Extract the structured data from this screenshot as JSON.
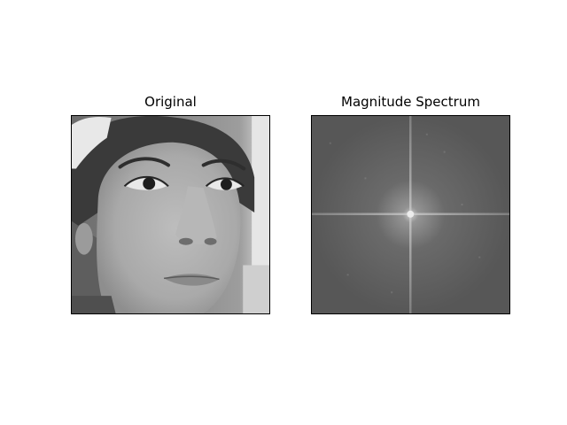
{
  "figure": {
    "panels": [
      {
        "title": "Original",
        "content": "grayscale-face-photo"
      },
      {
        "title": "Magnitude Spectrum",
        "content": "fft-magnitude-spectrum"
      }
    ],
    "colors": {
      "background": "#ffffff",
      "frame": "#000000",
      "spectrum_base": "#5a5a5a",
      "spectrum_center": "#d8d8d8"
    }
  }
}
